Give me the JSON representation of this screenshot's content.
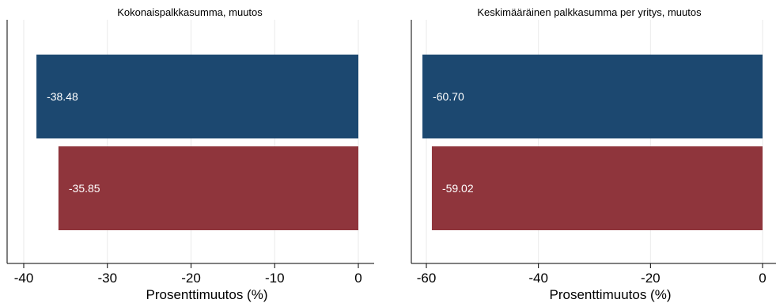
{
  "chart_data": [
    {
      "type": "bar",
      "orientation": "horizontal",
      "title": "Kokonaispalkkasumma, muutos",
      "xlabel": "Prosenttimuutos (%)",
      "ylabel": "",
      "xlim": [
        -40,
        0
      ],
      "xticks": [
        -40,
        -30,
        -20,
        -10,
        0
      ],
      "xtick_labels": [
        "-40",
        "-30",
        "-20",
        "-10",
        "0"
      ],
      "grid": true,
      "values": [
        -38.48,
        -35.85
      ],
      "data_labels": [
        "-38.48",
        "-35.85"
      ],
      "colors": [
        "#1c4870",
        "#8f353c"
      ]
    },
    {
      "type": "bar",
      "orientation": "horizontal",
      "title": "Keskimääräinen palkkasumma per yritys, muutos",
      "xlabel": "Prosenttimuutos (%)",
      "ylabel": "",
      "xlim": [
        -60,
        0
      ],
      "xticks": [
        -60,
        -40,
        -20,
        0
      ],
      "xtick_labels": [
        "-60",
        "-40",
        "-20",
        "0"
      ],
      "grid": true,
      "values": [
        -60.7,
        -59.02
      ],
      "data_labels": [
        "-60.70",
        "-59.02"
      ],
      "colors": [
        "#1c4870",
        "#8f353c"
      ]
    }
  ]
}
